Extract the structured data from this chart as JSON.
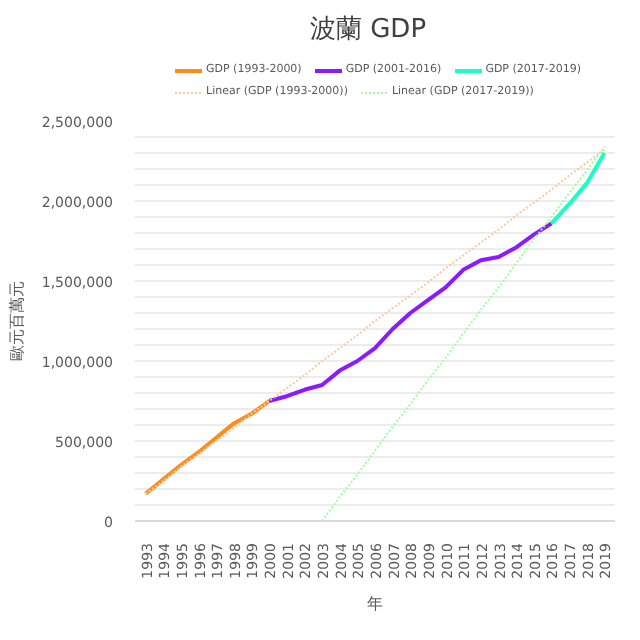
{
  "chart_data": {
    "type": "line",
    "title": "波蘭 GDP",
    "xlabel": "年",
    "ylabel": "歐元百萬元",
    "categories": [
      "1993",
      "1994",
      "1995",
      "1996",
      "1997",
      "1998",
      "1999",
      "2000",
      "2001",
      "2002",
      "2003",
      "2004",
      "2005",
      "2006",
      "2007",
      "2008",
      "2009",
      "2010",
      "2011",
      "2012",
      "2013",
      "2014",
      "2015",
      "2016",
      "2017",
      "2018",
      "2019"
    ],
    "series": [
      {
        "name": "GDP (1993-2000)",
        "color": "#ff8c1a",
        "values": [
          170000,
          260000,
          350000,
          430000,
          520000,
          610000,
          670000,
          750000,
          null,
          null,
          null,
          null,
          null,
          null,
          null,
          null,
          null,
          null,
          null,
          null,
          null,
          null,
          null,
          null,
          null,
          null,
          null
        ]
      },
      {
        "name": "GDP (2001-2016)",
        "color": "#8c1aff",
        "values": [
          null,
          null,
          null,
          null,
          null,
          null,
          null,
          750000,
          780000,
          820000,
          850000,
          940000,
          1000000,
          1080000,
          1200000,
          1300000,
          1380000,
          1460000,
          1570000,
          1630000,
          1650000,
          1710000,
          1790000,
          1860000,
          null,
          null,
          null
        ]
      },
      {
        "name": "GDP (2017-2019)",
        "color": "#1affc6",
        "values": [
          null,
          null,
          null,
          null,
          null,
          null,
          null,
          null,
          null,
          null,
          null,
          null,
          null,
          null,
          null,
          null,
          null,
          null,
          null,
          null,
          null,
          null,
          null,
          1860000,
          1980000,
          2110000,
          2300000
        ]
      },
      {
        "name": "Linear (GDP (1993-2000))",
        "color": "#ffc79e",
        "line_style": "dotted",
        "values": [
          170000,
          250000,
          340000,
          420000,
          500000,
          580000,
          670000,
          750000,
          830000,
          910000,
          1000000,
          1080000,
          1160000,
          1250000,
          1330000,
          1410000,
          1490000,
          1580000,
          1660000,
          1740000,
          1820000,
          1910000,
          1990000,
          2070000,
          2160000,
          2240000,
          2320000
        ]
      },
      {
        "name": "Linear (GDP (2017-2019))",
        "color": "#9eff9e",
        "line_style": "dotted",
        "values": [
          null,
          null,
          null,
          null,
          null,
          null,
          null,
          null,
          null,
          null,
          0,
          150000,
          290000,
          440000,
          590000,
          730000,
          880000,
          1020000,
          1170000,
          1320000,
          1460000,
          1610000,
          1760000,
          1900000,
          2050000,
          2190000,
          2340000
        ]
      }
    ],
    "ylim": [
      0,
      2500000
    ],
    "yticks": [
      0,
      {
        "value": 100000,
        "label": null
      },
      {
        "value": 200000,
        "label": null
      },
      {
        "value": 300000,
        "label": null
      },
      {
        "value": 400000,
        "label": null
      },
      {
        "value": 500000,
        "label": "500,000"
      },
      {
        "value": 600000,
        "label": null
      },
      {
        "value": 700000,
        "label": null
      },
      {
        "value": 800000,
        "label": null
      },
      {
        "value": 900000,
        "label": null
      },
      {
        "value": 1000000,
        "label": "1,000,000"
      },
      {
        "value": 1100000,
        "label": null
      },
      {
        "value": 1200000,
        "label": null
      },
      {
        "value": 1300000,
        "label": null
      },
      {
        "value": 1400000,
        "label": null
      },
      {
        "value": 1500000,
        "label": "1,500,000"
      },
      {
        "value": 1600000,
        "label": null
      },
      {
        "value": 1700000,
        "label": null
      },
      {
        "value": 1800000,
        "label": null
      },
      {
        "value": 1900000,
        "label": null
      },
      {
        "value": 2000000,
        "label": "2,000,000"
      },
      {
        "value": 2100000,
        "label": null
      },
      {
        "value": 2200000,
        "label": null
      },
      {
        "value": 2300000,
        "label": null
      },
      {
        "value": 2400000,
        "label": null
      },
      {
        "value": 2500000,
        "label": "2,500,000"
      }
    ],
    "grid": "y",
    "legend": "top",
    "line_style": "solid",
    "marker": "none"
  }
}
